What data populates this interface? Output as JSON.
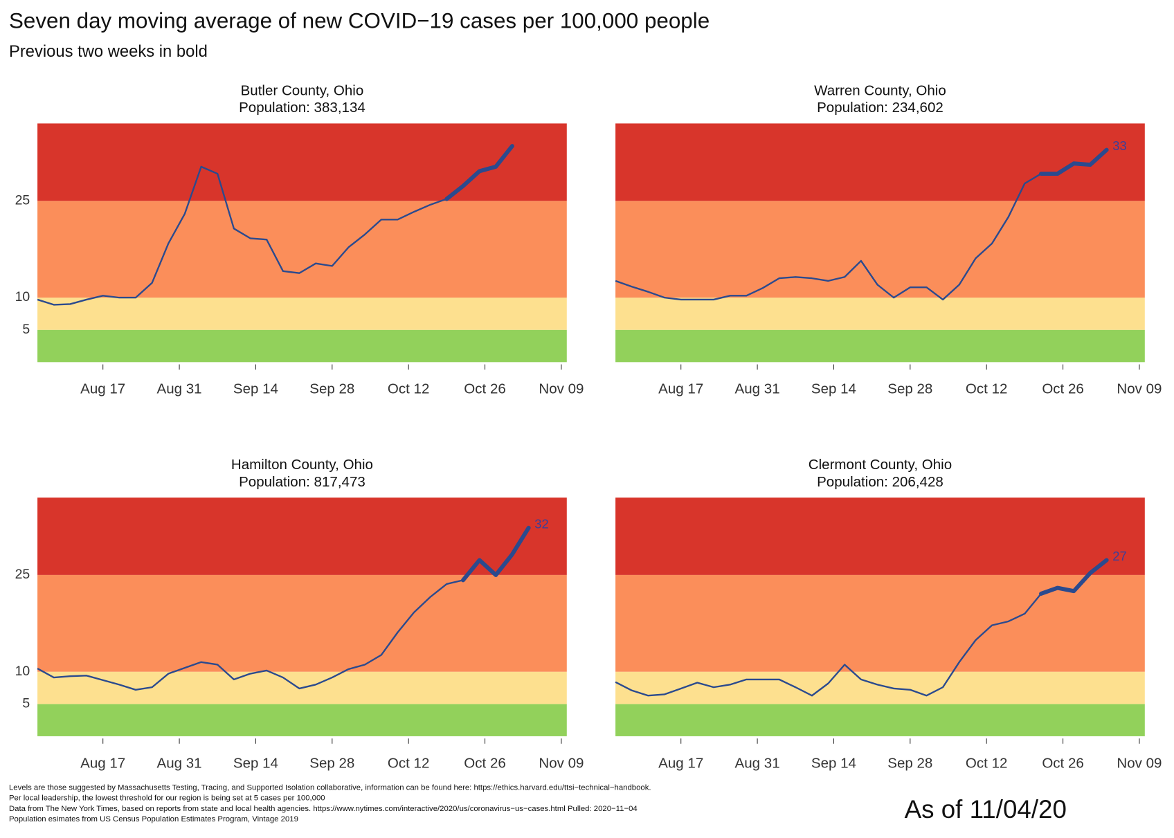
{
  "title": "Seven day moving average of new COVID−19 cases per 100,000 people",
  "subtitle": "Previous two weeks in bold",
  "footnotes": [
    "Levels are those suggested by Massachusetts Testing, Tracing, and Supported Isolation collaborative, information can be found here: https://ethics.harvard.edu/ttsi−technical−handbook.",
    "Per local leadership, the lowest threshold for our region is being set at 5 cases per 100,000",
    "Data from The New York Times, based on reports from state and local health agencies. https://www.nytimes.com/interactive/2020/us/coronavirus−us−cases.html Pulled: 2020−11−04",
    "Population esimates from US Census Population Estimates Program, Vintage 2019"
  ],
  "stamp": "As of 11/04/20",
  "chart_data": [
    {
      "type": "line",
      "title": "Butler County, Ohio",
      "subtitle": "Population: 383,134",
      "color": "#2b4a8e",
      "x": [
        "Aug 05",
        "Aug 08",
        "Aug 11",
        "Aug 14",
        "Aug 17",
        "Aug 20",
        "Aug 23",
        "Aug 26",
        "Aug 29",
        "Sep 01",
        "Sep 04",
        "Sep 07",
        "Sep 10",
        "Sep 13",
        "Sep 16",
        "Sep 19",
        "Sep 22",
        "Sep 25",
        "Sep 28",
        "Oct 01",
        "Oct 04",
        "Oct 07",
        "Oct 10",
        "Oct 13",
        "Oct 16",
        "Oct 19",
        "Oct 22",
        "Oct 25",
        "Oct 28",
        "Oct 31",
        "Nov 03"
      ],
      "values": [
        9.7,
        8.9,
        9.0,
        9.7,
        10.3,
        10.0,
        10.0,
        12.3,
        18.4,
        23.0,
        30.3,
        29.2,
        20.7,
        19.2,
        19.0,
        14.1,
        13.8,
        15.3,
        14.9,
        17.8,
        19.8,
        22.1,
        22.1,
        23.3,
        24.4,
        25.3,
        27.3,
        29.6,
        30.3,
        33.5,
        null
      ],
      "xlim": [
        "Aug 05",
        "Nov 10"
      ],
      "xticks": [
        "Aug 17",
        "Aug 31",
        "Sep 14",
        "Sep 28",
        "Oct 12",
        "Oct 26",
        "Nov 09"
      ],
      "ylim": [
        0,
        37
      ],
      "yticks": [
        5,
        10,
        25
      ],
      "bands": [
        {
          "from": 0,
          "to": 5,
          "color": "#92d15b"
        },
        {
          "from": 5,
          "to": 10,
          "color": "#fde08f"
        },
        {
          "from": 10,
          "to": 25,
          "color": "#fb8e5a"
        },
        {
          "from": 25,
          "to": 37,
          "color": "#d8352b"
        }
      ]
    },
    {
      "type": "line",
      "title": "Warren County, Ohio",
      "subtitle": "Population: 234,602",
      "color": "#2b4a8e",
      "x": [
        "Aug 05",
        "Aug 08",
        "Aug 11",
        "Aug 14",
        "Aug 17",
        "Aug 20",
        "Aug 23",
        "Aug 26",
        "Aug 29",
        "Sep 01",
        "Sep 04",
        "Sep 07",
        "Sep 10",
        "Sep 13",
        "Sep 16",
        "Sep 19",
        "Sep 22",
        "Sep 25",
        "Sep 28",
        "Oct 01",
        "Oct 04",
        "Oct 07",
        "Oct 10",
        "Oct 13",
        "Oct 16",
        "Oct 19",
        "Oct 22",
        "Oct 25",
        "Oct 28",
        "Oct 31",
        "Nov 03"
      ],
      "values": [
        12.6,
        11.7,
        10.9,
        10.0,
        9.7,
        9.7,
        9.7,
        10.3,
        10.3,
        11.5,
        13.0,
        13.2,
        13.0,
        12.6,
        13.2,
        15.7,
        12.0,
        10.0,
        11.6,
        11.6,
        9.7,
        12.0,
        16.1,
        18.4,
        22.5,
        27.7,
        29.2,
        29.2,
        30.8,
        30.6,
        32.9
      ],
      "value_labels": [
        null,
        null,
        null,
        null,
        null,
        null,
        null,
        null,
        null,
        null,
        null,
        null,
        null,
        null,
        null,
        null,
        null,
        null,
        null,
        null,
        null,
        null,
        null,
        null,
        null,
        null,
        null,
        null,
        null,
        null,
        "33"
      ],
      "xlim": [
        "Aug 05",
        "Nov 10"
      ],
      "xticks": [
        "Aug 17",
        "Aug 31",
        "Sep 14",
        "Sep 28",
        "Oct 12",
        "Oct 26",
        "Nov 09"
      ],
      "ylim": [
        0,
        37
      ],
      "yticks": [
        5,
        10,
        25
      ],
      "bands": [
        {
          "from": 0,
          "to": 5,
          "color": "#92d15b"
        },
        {
          "from": 5,
          "to": 10,
          "color": "#fde08f"
        },
        {
          "from": 10,
          "to": 25,
          "color": "#fb8e5a"
        },
        {
          "from": 25,
          "to": 37,
          "color": "#d8352b"
        }
      ]
    },
    {
      "type": "line",
      "title": "Hamilton County, Ohio",
      "subtitle": "Population: 817,473",
      "color": "#2b4a8e",
      "x": [
        "Aug 05",
        "Aug 08",
        "Aug 11",
        "Aug 14",
        "Aug 17",
        "Aug 20",
        "Aug 23",
        "Aug 26",
        "Aug 29",
        "Sep 01",
        "Sep 04",
        "Sep 07",
        "Sep 10",
        "Sep 13",
        "Sep 16",
        "Sep 19",
        "Sep 22",
        "Sep 25",
        "Sep 28",
        "Oct 01",
        "Oct 04",
        "Oct 07",
        "Oct 10",
        "Oct 13",
        "Oct 16",
        "Oct 19",
        "Oct 22",
        "Oct 25",
        "Oct 28",
        "Oct 31",
        "Nov 03"
      ],
      "values": [
        10.5,
        9.1,
        9.3,
        9.4,
        8.7,
        8.0,
        7.2,
        7.6,
        9.7,
        10.6,
        11.5,
        11.1,
        8.8,
        9.7,
        10.2,
        9.1,
        7.4,
        8.0,
        9.1,
        10.4,
        11.1,
        12.6,
        16.1,
        19.2,
        21.6,
        23.6,
        24.2,
        27.3,
        25.0,
        28.2,
        32.3
      ],
      "value_labels": [
        null,
        null,
        null,
        null,
        null,
        null,
        null,
        null,
        null,
        null,
        null,
        null,
        null,
        null,
        null,
        null,
        null,
        null,
        null,
        null,
        null,
        null,
        null,
        null,
        null,
        null,
        null,
        null,
        null,
        null,
        "32"
      ],
      "xlim": [
        "Aug 05",
        "Nov 10"
      ],
      "xticks": [
        "Aug 17",
        "Aug 31",
        "Sep 14",
        "Sep 28",
        "Oct 12",
        "Oct 26",
        "Nov 09"
      ],
      "ylim": [
        0,
        37
      ],
      "yticks": [
        5,
        10,
        25
      ],
      "bands": [
        {
          "from": 0,
          "to": 5,
          "color": "#92d15b"
        },
        {
          "from": 5,
          "to": 10,
          "color": "#fde08f"
        },
        {
          "from": 10,
          "to": 25,
          "color": "#fb8e5a"
        },
        {
          "from": 25,
          "to": 37,
          "color": "#d8352b"
        }
      ]
    },
    {
      "type": "line",
      "title": "Clermont County, Ohio",
      "subtitle": "Population: 206,428",
      "color": "#2b4a8e",
      "x": [
        "Aug 05",
        "Aug 08",
        "Aug 11",
        "Aug 14",
        "Aug 17",
        "Aug 20",
        "Aug 23",
        "Aug 26",
        "Aug 29",
        "Sep 01",
        "Sep 04",
        "Sep 07",
        "Sep 10",
        "Sep 13",
        "Sep 16",
        "Sep 19",
        "Sep 22",
        "Sep 25",
        "Sep 28",
        "Oct 01",
        "Oct 04",
        "Oct 07",
        "Oct 10",
        "Oct 13",
        "Oct 16",
        "Oct 19",
        "Oct 22",
        "Oct 25",
        "Oct 28",
        "Oct 31",
        "Nov 03"
      ],
      "values": [
        8.4,
        7.1,
        6.3,
        6.5,
        7.4,
        8.3,
        7.6,
        8.0,
        8.8,
        8.8,
        8.8,
        7.6,
        6.3,
        8.2,
        11.1,
        8.8,
        8.0,
        7.4,
        7.2,
        6.3,
        7.6,
        11.5,
        14.9,
        17.2,
        17.8,
        19.0,
        22.1,
        23.0,
        22.5,
        25.3,
        27.3
      ],
      "value_labels": [
        null,
        null,
        null,
        null,
        null,
        null,
        null,
        null,
        null,
        null,
        null,
        null,
        null,
        null,
        null,
        null,
        null,
        null,
        null,
        null,
        null,
        null,
        null,
        null,
        null,
        null,
        null,
        null,
        null,
        null,
        "27"
      ],
      "xlim": [
        "Aug 05",
        "Nov 10"
      ],
      "xticks": [
        "Aug 17",
        "Aug 31",
        "Sep 14",
        "Sep 28",
        "Oct 12",
        "Oct 26",
        "Nov 09"
      ],
      "ylim": [
        0,
        37
      ],
      "yticks": [
        5,
        10,
        25
      ],
      "bands": [
        {
          "from": 0,
          "to": 5,
          "color": "#92d15b"
        },
        {
          "from": 5,
          "to": 10,
          "color": "#fde08f"
        },
        {
          "from": 10,
          "to": 25,
          "color": "#fb8e5a"
        },
        {
          "from": 25,
          "to": 37,
          "color": "#d8352b"
        }
      ]
    }
  ]
}
